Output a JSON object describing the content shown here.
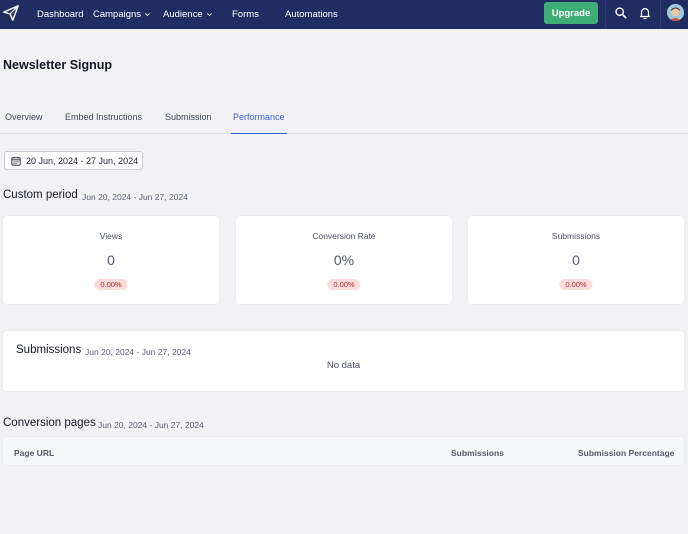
{
  "nav": {
    "items": [
      {
        "label": "Dashboard"
      },
      {
        "label": "Campaigns"
      },
      {
        "label": "Audience"
      },
      {
        "label": "Forms"
      },
      {
        "label": "Automations"
      }
    ],
    "upgrade_label": "Upgrade"
  },
  "page": {
    "title": "Newsletter Signup"
  },
  "tabs": [
    {
      "label": "Overview"
    },
    {
      "label": "Embed Instructions"
    },
    {
      "label": "Submission"
    },
    {
      "label": "Performance",
      "active": true
    }
  ],
  "date_range": {
    "label": "20 Jun, 2024 - 27 Jun, 2024"
  },
  "custom_period": {
    "title": "Custom period",
    "range": "Jun 20, 2024 - Jun 27, 2024",
    "stats": [
      {
        "label": "Views",
        "value": "0",
        "change": "0.00%"
      },
      {
        "label": "Conversion Rate",
        "value": "0%",
        "change": "0.00%"
      },
      {
        "label": "Submissions",
        "value": "0",
        "change": "0.00%"
      }
    ]
  },
  "submissions": {
    "title": "Submissions",
    "range": "Jun 20, 2024 - Jun 27, 2024",
    "empty_text": "No data"
  },
  "conversion_pages": {
    "title": "Conversion pages",
    "range": "Jun 20, 2024 - Jun 27, 2024",
    "columns": [
      "Page URL",
      "Submissions",
      "Submission Percentage"
    ]
  },
  "colors": {
    "nav_bg": "#1f2d63",
    "upgrade_bg": "#3fae76",
    "accent": "#3b63d8",
    "badge_bg": "#fbdcdc",
    "badge_text": "#b12a2a"
  }
}
